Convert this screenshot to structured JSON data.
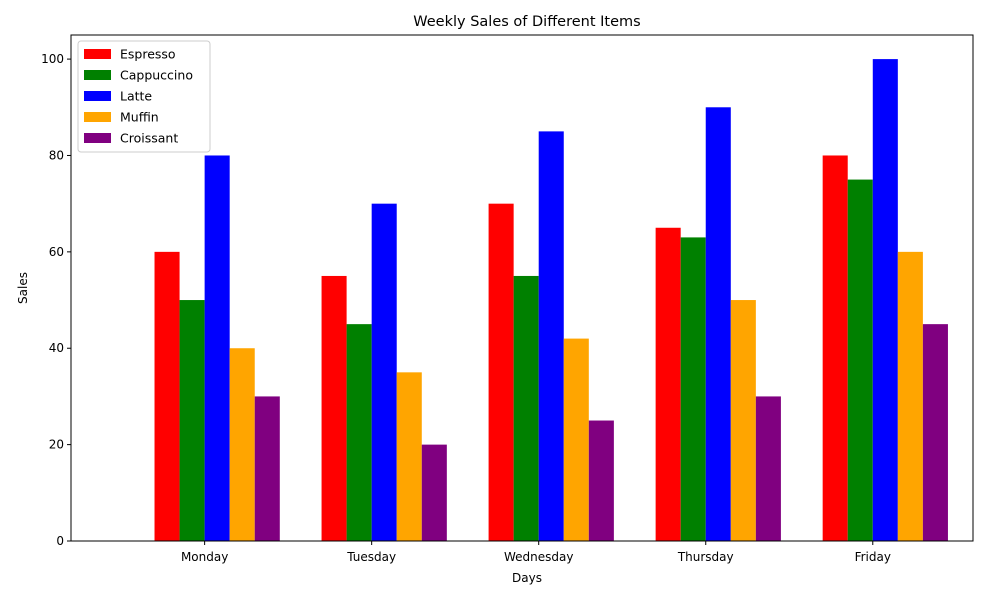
{
  "chart_data": {
    "type": "bar",
    "title": "Weekly Sales of Different Items",
    "xlabel": "Days",
    "ylabel": "Sales",
    "categories": [
      "Monday",
      "Tuesday",
      "Wednesday",
      "Thursday",
      "Friday"
    ],
    "series": [
      {
        "name": "Espresso",
        "color": "#ff0000",
        "values": [
          60,
          55,
          70,
          65,
          80
        ]
      },
      {
        "name": "Cappuccino",
        "color": "#008000",
        "values": [
          50,
          45,
          55,
          63,
          75
        ]
      },
      {
        "name": "Latte",
        "color": "#0000ff",
        "values": [
          80,
          70,
          85,
          90,
          100
        ]
      },
      {
        "name": "Muffin",
        "color": "#ffa500",
        "values": [
          40,
          35,
          42,
          50,
          60
        ]
      },
      {
        "name": "Croissant",
        "color": "#800080",
        "values": [
          30,
          20,
          25,
          30,
          45
        ]
      }
    ],
    "ylim": [
      0,
      105
    ],
    "yticks": [
      0,
      20,
      40,
      60,
      80,
      100
    ],
    "grid": false,
    "legend_position": "top-left"
  }
}
